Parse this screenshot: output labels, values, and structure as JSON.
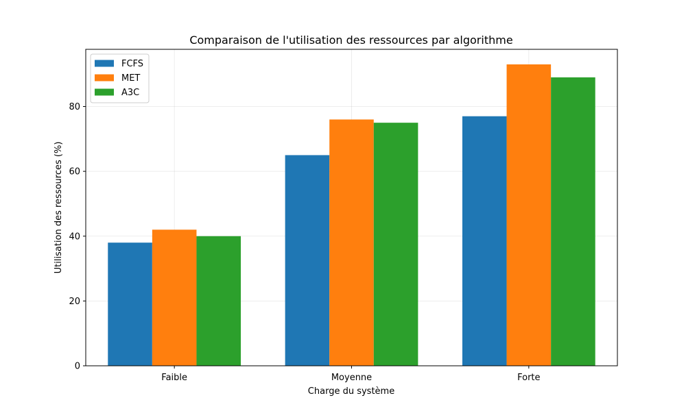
{
  "chart_data": {
    "type": "bar",
    "title": "Comparaison de l'utilisation des ressources par algorithme",
    "xlabel": "Charge du système",
    "ylabel": "Utilisation des ressources (%)",
    "categories": [
      "Faible",
      "Moyenne",
      "Forte"
    ],
    "series": [
      {
        "name": "FCFS",
        "color": "#1f77b4",
        "values": [
          38,
          65,
          77
        ]
      },
      {
        "name": "MET",
        "color": "#ff7f0e",
        "values": [
          42,
          76,
          93
        ]
      },
      {
        "name": "A3C",
        "color": "#2ca02c",
        "values": [
          40,
          75,
          89
        ]
      }
    ],
    "ylim": [
      0,
      97.65
    ],
    "yticks": [
      0,
      20,
      40,
      60,
      80
    ],
    "grid": true,
    "legend_position": "top-left"
  }
}
